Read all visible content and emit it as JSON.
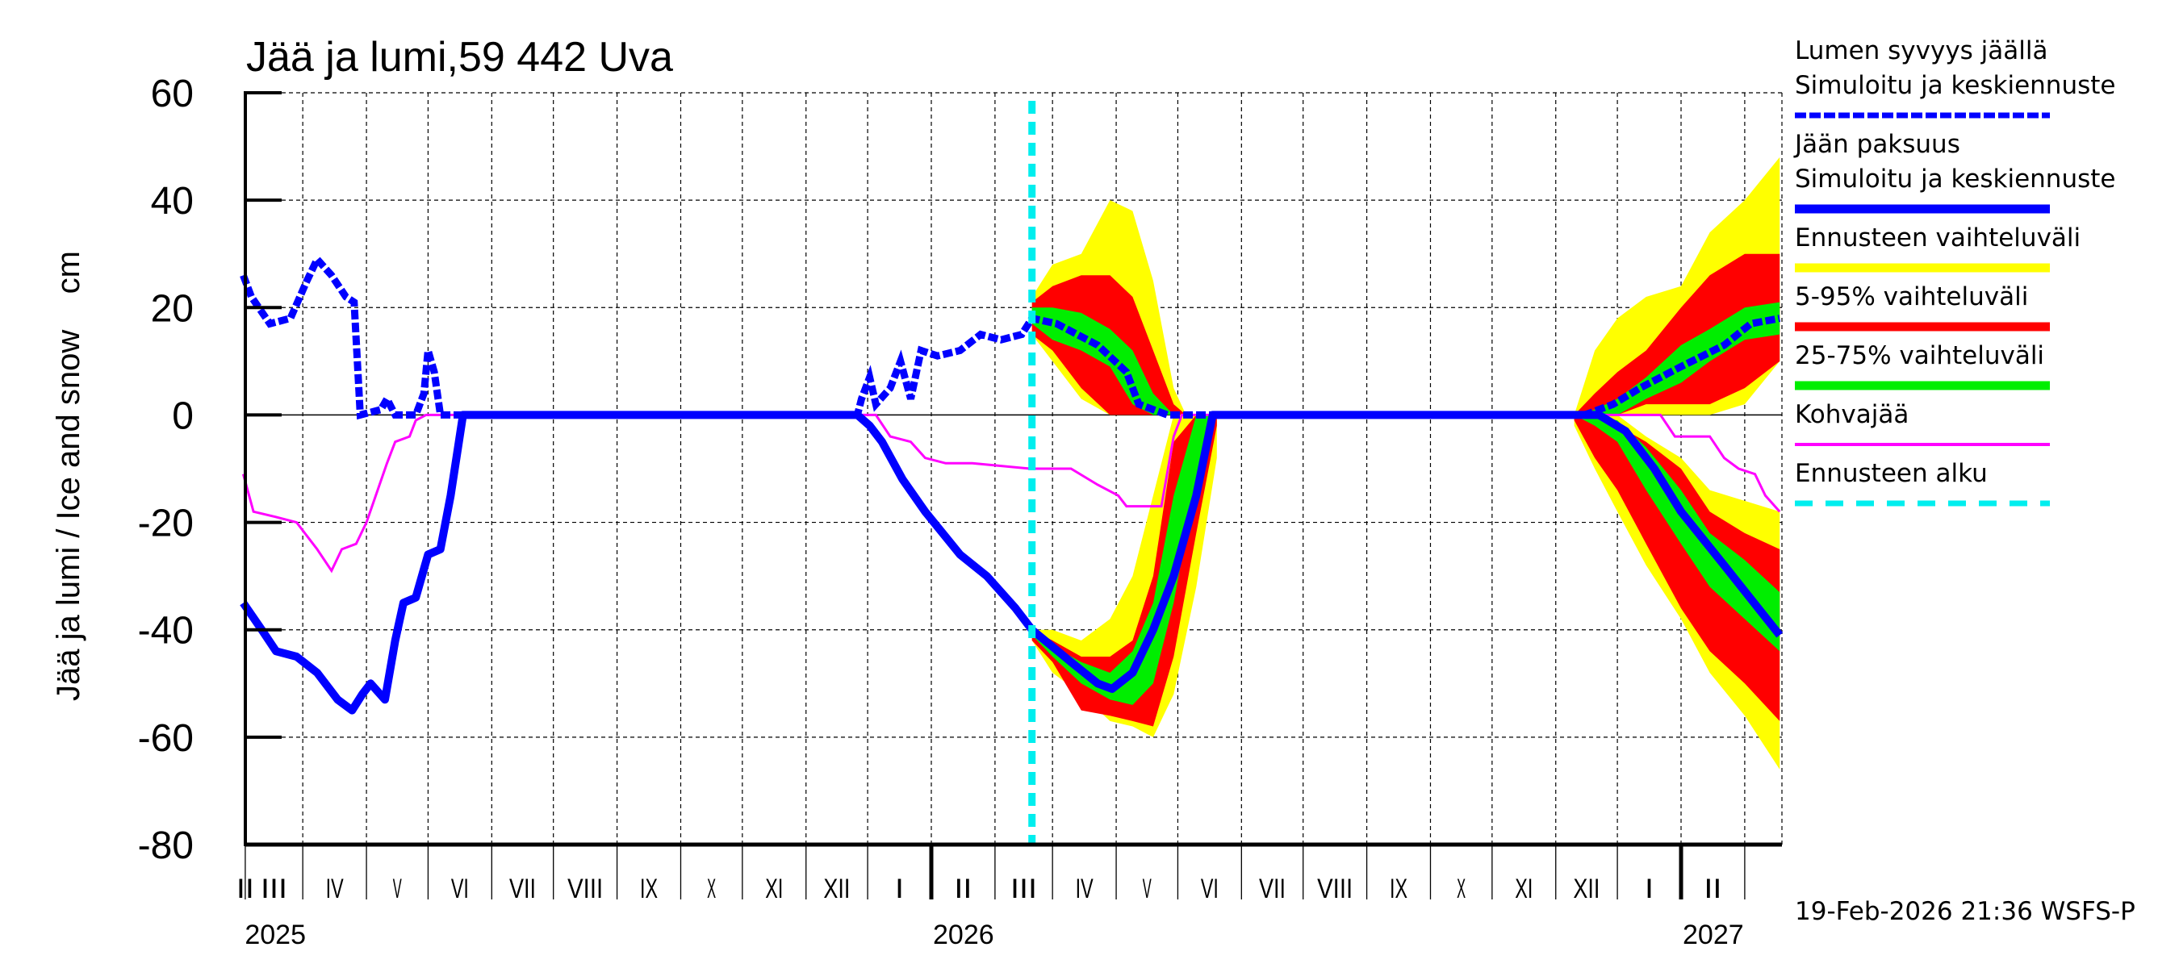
{
  "chart_data": {
    "type": "line",
    "title": "Jää ja lumi,59 442 Uva",
    "ylabel": "Jää ja lumi / Ice and snow    cm",
    "ylim": [
      -80,
      60
    ],
    "yticks": [
      60,
      40,
      20,
      0,
      -20,
      -40,
      -60,
      -80
    ],
    "xlim": [
      "2025-01-31",
      "2027-02-18"
    ],
    "x_month_labels": [
      "II",
      "III",
      "IV",
      "V",
      "VI",
      "VII",
      "VIII",
      "IX",
      "X",
      "XI",
      "XII",
      "I",
      "II",
      "III",
      "IV",
      "V",
      "VI",
      "VII",
      "VIII",
      "IX",
      "X",
      "XI",
      "XII",
      "I",
      "II"
    ],
    "x_year_labels": [
      {
        "year": "2025",
        "date": "2025-01-31"
      },
      {
        "year": "2026",
        "date": "2026-01-01"
      },
      {
        "year": "2027",
        "date": "2027-01-01"
      }
    ],
    "grid": true,
    "legend_placement": "right",
    "forecast_start": "2026-02-19",
    "colors": {
      "snow": "#0000ff",
      "ice": "#0000ff",
      "range": "#ffff00",
      "p5_95": "#ff0000",
      "p25_75": "#00ee00",
      "slush": "#ff00ff",
      "forecast_start": "#00eeee"
    },
    "legend": [
      {
        "key": "snow",
        "line1": "Lumen syvyys jäällä",
        "line2": "Simuloitu ja keskiennuste"
      },
      {
        "key": "ice",
        "line1": "Jään paksuus",
        "line2": "Simuloitu ja keskiennuste"
      },
      {
        "key": "range",
        "line1": "Ennusteen vaihteluväli"
      },
      {
        "key": "p5_95",
        "line1": "5-95% vaihteluväli"
      },
      {
        "key": "p25_75",
        "line1": "25-75% vaihteluväli"
      },
      {
        "key": "slush",
        "line1": "Kohvajää"
      },
      {
        "key": "forecast_start",
        "line1": "Ennusteen alku"
      }
    ],
    "series": {
      "snow": [
        [
          "2025-01-31",
          26
        ],
        [
          "2025-02-04",
          22
        ],
        [
          "2025-02-13",
          17
        ],
        [
          "2025-02-23",
          18
        ],
        [
          "2025-03-03",
          25
        ],
        [
          "2025-03-08",
          29
        ],
        [
          "2025-03-15",
          26
        ],
        [
          "2025-03-22",
          22
        ],
        [
          "2025-03-26",
          21
        ],
        [
          "2025-03-29",
          0
        ],
        [
          "2025-04-08",
          1
        ],
        [
          "2025-04-11",
          3
        ],
        [
          "2025-04-15",
          0
        ],
        [
          "2025-04-25",
          0
        ],
        [
          "2025-04-29",
          4
        ],
        [
          "2025-05-01",
          12
        ],
        [
          "2025-05-04",
          8
        ],
        [
          "2025-05-07",
          0
        ],
        [
          "2025-11-26",
          0
        ],
        [
          "2025-11-28",
          3
        ],
        [
          "2025-12-02",
          7
        ],
        [
          "2025-12-05",
          2
        ],
        [
          "2025-12-12",
          5
        ],
        [
          "2025-12-17",
          10
        ],
        [
          "2025-12-22",
          3
        ],
        [
          "2025-12-27",
          12
        ],
        [
          "2026-01-04",
          11
        ],
        [
          "2026-01-15",
          12
        ],
        [
          "2026-01-25",
          15
        ],
        [
          "2026-02-04",
          14
        ],
        [
          "2026-02-14",
          15
        ],
        [
          "2026-02-19",
          18
        ],
        [
          "2026-03-03",
          17
        ],
        [
          "2026-03-23",
          13
        ],
        [
          "2026-04-06",
          8
        ],
        [
          "2026-04-12",
          2
        ],
        [
          "2026-04-26",
          0
        ],
        [
          "2026-11-15",
          0
        ],
        [
          "2026-11-29",
          2
        ],
        [
          "2026-12-12",
          5
        ],
        [
          "2027-01-01",
          9
        ],
        [
          "2027-01-22",
          13
        ],
        [
          "2027-02-04",
          17
        ],
        [
          "2027-02-18",
          18
        ]
      ],
      "ice": [
        [
          "2025-01-31",
          -35
        ],
        [
          "2025-02-09",
          -40
        ],
        [
          "2025-02-16",
          -44
        ],
        [
          "2025-02-26",
          -45
        ],
        [
          "2025-03-08",
          -48
        ],
        [
          "2025-03-18",
          -53
        ],
        [
          "2025-03-25",
          -55
        ],
        [
          "2025-03-30",
          -52
        ],
        [
          "2025-04-03",
          -50
        ],
        [
          "2025-04-10",
          -53
        ],
        [
          "2025-04-15",
          -42
        ],
        [
          "2025-04-19",
          -35
        ],
        [
          "2025-04-25",
          -34
        ],
        [
          "2025-05-01",
          -26
        ],
        [
          "2025-05-07",
          -25
        ],
        [
          "2025-05-12",
          -15
        ],
        [
          "2025-05-16",
          -5
        ],
        [
          "2025-05-18",
          0
        ],
        [
          "2025-11-26",
          0
        ],
        [
          "2025-12-02",
          -2
        ],
        [
          "2025-12-08",
          -5
        ],
        [
          "2025-12-18",
          -12
        ],
        [
          "2025-12-29",
          -18
        ],
        [
          "2026-01-15",
          -26
        ],
        [
          "2026-01-28",
          -30
        ],
        [
          "2026-02-11",
          -36
        ],
        [
          "2026-02-19",
          -40
        ],
        [
          "2026-03-10",
          -46
        ],
        [
          "2026-03-23",
          -50
        ],
        [
          "2026-03-30",
          -51
        ],
        [
          "2026-04-09",
          -48
        ],
        [
          "2026-04-19",
          -40
        ],
        [
          "2026-04-29",
          -30
        ],
        [
          "2026-05-10",
          -15
        ],
        [
          "2026-05-18",
          0
        ],
        [
          "2026-11-22",
          0
        ],
        [
          "2026-12-05",
          -3
        ],
        [
          "2026-12-19",
          -10
        ],
        [
          "2027-01-01",
          -18
        ],
        [
          "2027-01-22",
          -28
        ],
        [
          "2027-02-18",
          -41
        ]
      ],
      "slush": [
        [
          "2025-01-31",
          -11
        ],
        [
          "2025-02-05",
          -18
        ],
        [
          "2025-02-16",
          -19
        ],
        [
          "2025-02-26",
          -20
        ],
        [
          "2025-03-08",
          -25
        ],
        [
          "2025-03-15",
          -29
        ],
        [
          "2025-03-20",
          -25
        ],
        [
          "2025-03-27",
          -24
        ],
        [
          "2025-04-01",
          -20
        ],
        [
          "2025-04-11",
          -9
        ],
        [
          "2025-04-15",
          -5
        ],
        [
          "2025-04-22",
          -4
        ],
        [
          "2025-04-25",
          -1
        ],
        [
          "2025-04-30",
          0
        ],
        [
          "2025-12-05",
          0
        ],
        [
          "2025-12-12",
          -4
        ],
        [
          "2025-12-22",
          -5
        ],
        [
          "2025-12-29",
          -8
        ],
        [
          "2026-01-08",
          -9
        ],
        [
          "2026-01-21",
          -9
        ],
        [
          "2026-02-18",
          -10
        ],
        [
          "2026-03-10",
          -10
        ],
        [
          "2026-03-23",
          -13
        ],
        [
          "2026-04-02",
          -15
        ],
        [
          "2026-04-06",
          -17
        ],
        [
          "2026-04-23",
          -17
        ],
        [
          "2026-04-29",
          -4
        ],
        [
          "2026-05-03",
          0
        ],
        [
          "2026-12-22",
          0
        ],
        [
          "2026-12-29",
          -4
        ],
        [
          "2027-01-15",
          -4
        ],
        [
          "2027-01-22",
          -8
        ],
        [
          "2027-01-29",
          -10
        ],
        [
          "2027-02-06",
          -11
        ],
        [
          "2027-02-11",
          -15
        ],
        [
          "2027-02-18",
          -18
        ]
      ]
    },
    "bands": [
      {
        "part": "snow",
        "data": [
          {
            "date": "2026-02-19",
            "range": [
              15,
              22
            ],
            "p5_95": [
              15,
              21
            ],
            "p25_75": [
              17,
              20
            ]
          },
          {
            "date": "2026-03-01",
            "range": [
              10,
              28
            ],
            "p5_95": [
              12,
              24
            ],
            "p25_75": [
              14,
              20
            ]
          },
          {
            "date": "2026-03-15",
            "range": [
              3,
              30
            ],
            "p5_95": [
              5,
              26
            ],
            "p25_75": [
              12,
              19
            ]
          },
          {
            "date": "2026-03-29",
            "range": [
              0,
              40
            ],
            "p5_95": [
              0,
              26
            ],
            "p25_75": [
              9,
              16
            ]
          },
          {
            "date": "2026-04-09",
            "range": [
              0,
              38
            ],
            "p5_95": [
              0,
              22
            ],
            "p25_75": [
              2,
              12
            ]
          },
          {
            "date": "2026-04-19",
            "range": [
              0,
              25
            ],
            "p5_95": [
              0,
              12
            ],
            "p25_75": [
              0,
              4
            ]
          },
          {
            "date": "2026-04-29",
            "range": [
              0,
              5
            ],
            "p5_95": [
              0,
              2
            ],
            "p25_75": [
              0,
              0
            ]
          },
          {
            "date": "2026-05-05",
            "range": [
              0,
              0
            ],
            "p5_95": [
              0,
              0
            ],
            "p25_75": [
              0,
              0
            ]
          }
        ]
      },
      {
        "part": "ice",
        "data": [
          {
            "date": "2026-02-19",
            "range": [
              -42,
              -40
            ],
            "p5_95": [
              -42,
              -40
            ],
            "p25_75": [
              -41,
              -40
            ]
          },
          {
            "date": "2026-03-01",
            "range": [
              -48,
              -40
            ],
            "p5_95": [
              -46,
              -42
            ],
            "p25_75": [
              -45,
              -43
            ]
          },
          {
            "date": "2026-03-15",
            "range": [
              -52,
              -42
            ],
            "p5_95": [
              -55,
              -45
            ],
            "p25_75": [
              -50,
              -46
            ]
          },
          {
            "date": "2026-03-29",
            "range": [
              -57,
              -38
            ],
            "p5_95": [
              -56,
              -45
            ],
            "p25_75": [
              -53,
              -48
            ]
          },
          {
            "date": "2026-04-09",
            "range": [
              -58,
              -30
            ],
            "p5_95": [
              -57,
              -42
            ],
            "p25_75": [
              -54,
              -44
            ]
          },
          {
            "date": "2026-04-19",
            "range": [
              -60,
              -15
            ],
            "p5_95": [
              -58,
              -30
            ],
            "p25_75": [
              -50,
              -35
            ]
          },
          {
            "date": "2026-04-29",
            "range": [
              -52,
              0
            ],
            "p5_95": [
              -45,
              -5
            ],
            "p25_75": [
              -35,
              -15
            ]
          },
          {
            "date": "2026-05-10",
            "range": [
              -32,
              0
            ],
            "p5_95": [
              -22,
              0
            ],
            "p25_75": [
              -12,
              0
            ]
          },
          {
            "date": "2026-05-20",
            "range": [
              -8,
              0
            ],
            "p5_95": [
              -2,
              0
            ],
            "p25_75": [
              0,
              0
            ]
          }
        ]
      },
      {
        "part": "snow",
        "data": [
          {
            "date": "2026-11-10",
            "range": [
              0,
              0
            ],
            "p5_95": [
              0,
              0
            ],
            "p25_75": [
              0,
              0
            ]
          },
          {
            "date": "2026-11-20",
            "range": [
              0,
              12
            ],
            "p5_95": [
              0,
              4
            ],
            "p25_75": [
              0,
              1
            ]
          },
          {
            "date": "2026-12-01",
            "range": [
              0,
              18
            ],
            "p5_95": [
              0,
              8
            ],
            "p25_75": [
              0,
              3
            ]
          },
          {
            "date": "2026-12-15",
            "range": [
              0,
              22
            ],
            "p5_95": [
              2,
              12
            ],
            "p25_75": [
              3,
              7
            ]
          },
          {
            "date": "2027-01-01",
            "range": [
              0,
              24
            ],
            "p5_95": [
              2,
              20
            ],
            "p25_75": [
              6,
              13
            ]
          },
          {
            "date": "2027-01-15",
            "range": [
              0,
              34
            ],
            "p5_95": [
              2,
              26
            ],
            "p25_75": [
              10,
              16
            ]
          },
          {
            "date": "2027-02-01",
            "range": [
              2,
              40
            ],
            "p5_95": [
              5,
              30
            ],
            "p25_75": [
              14,
              20
            ]
          },
          {
            "date": "2027-02-18",
            "range": [
              10,
              48
            ],
            "p5_95": [
              10,
              30
            ],
            "p25_75": [
              15,
              21
            ]
          }
        ]
      },
      {
        "part": "ice",
        "data": [
          {
            "date": "2026-11-10",
            "range": [
              -2,
              0
            ],
            "p5_95": [
              -1,
              0
            ],
            "p25_75": [
              0,
              0
            ]
          },
          {
            "date": "2026-11-20",
            "range": [
              -10,
              0
            ],
            "p5_95": [
              -8,
              0
            ],
            "p25_75": [
              -2,
              0
            ]
          },
          {
            "date": "2026-12-01",
            "range": [
              -18,
              0
            ],
            "p5_95": [
              -14,
              -2
            ],
            "p25_75": [
              -5,
              -1
            ]
          },
          {
            "date": "2026-12-15",
            "range": [
              -28,
              -4
            ],
            "p5_95": [
              -24,
              -5
            ],
            "p25_75": [
              -14,
              -6
            ]
          },
          {
            "date": "2027-01-01",
            "range": [
              -38,
              -8
            ],
            "p5_95": [
              -36,
              -10
            ],
            "p25_75": [
              -24,
              -14
            ]
          },
          {
            "date": "2027-01-15",
            "range": [
              -48,
              -14
            ],
            "p5_95": [
              -44,
              -18
            ],
            "p25_75": [
              -32,
              -22
            ]
          },
          {
            "date": "2027-02-01",
            "range": [
              -56,
              -16
            ],
            "p5_95": [
              -50,
              -22
            ],
            "p25_75": [
              -38,
              -27
            ]
          },
          {
            "date": "2027-02-18",
            "range": [
              -66,
              -18
            ],
            "p5_95": [
              -57,
              -25
            ],
            "p25_75": [
              -44,
              -33
            ]
          }
        ]
      }
    ]
  },
  "footer": {
    "timestamp": "19-Feb-2026 21:36 WSFS-P"
  }
}
